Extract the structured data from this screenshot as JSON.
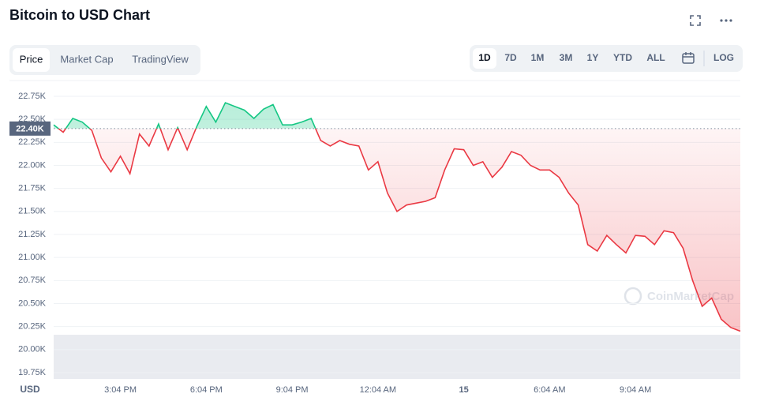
{
  "header": {
    "title": "Bitcoin to USD Chart",
    "tabs": [
      "Price",
      "Market Cap",
      "TradingView"
    ],
    "ranges": [
      "1D",
      "7D",
      "1M",
      "3M",
      "1Y",
      "YTD",
      "ALL"
    ],
    "log": "LOG",
    "watermark": "CoinMarketCap"
  },
  "chart_data": {
    "type": "line",
    "y_unit": "USD",
    "categories": [
      null,
      null,
      null,
      null,
      null,
      null,
      null,
      "3:04 PM",
      null,
      null,
      null,
      null,
      null,
      null,
      null,
      null,
      "6:04 PM",
      null,
      null,
      null,
      null,
      null,
      null,
      null,
      null,
      "9:04 PM",
      null,
      null,
      null,
      null,
      null,
      null,
      null,
      null,
      "12:04 AM",
      null,
      null,
      null,
      null,
      null,
      null,
      null,
      null,
      "15",
      null,
      null,
      null,
      null,
      null,
      null,
      null,
      null,
      "6:04 AM",
      null,
      null,
      null,
      null,
      null,
      null,
      null,
      null,
      "9:04 AM",
      null,
      null,
      null,
      null,
      null,
      null,
      null,
      null,
      null,
      null,
      null
    ],
    "values": [
      22440,
      22360,
      22510,
      22470,
      22380,
      22080,
      21930,
      22100,
      21910,
      22340,
      22210,
      22450,
      22170,
      22410,
      22170,
      22420,
      22640,
      22470,
      22680,
      22640,
      22600,
      22510,
      22610,
      22660,
      22440,
      22440,
      22470,
      22510,
      22270,
      22210,
      22270,
      22230,
      22210,
      21950,
      22040,
      21700,
      21500,
      21570,
      21590,
      21610,
      21650,
      21950,
      22180,
      22170,
      22000,
      22040,
      21870,
      21980,
      22150,
      22110,
      22000,
      21950,
      21950,
      21870,
      21700,
      21570,
      21140,
      21070,
      21240,
      21140,
      21050,
      21240,
      21230,
      21140,
      21290,
      21270,
      21100,
      20750,
      20470,
      20560,
      20330,
      20240,
      20200
    ],
    "reference": {
      "value": 22400,
      "label": "22.40K"
    },
    "up_color": "#16c784",
    "down_color": "#ea3943",
    "ylim": [
      19750,
      22750
    ],
    "yticks": [
      {
        "value": 22750,
        "label": "22.75K"
      },
      {
        "value": 22500,
        "label": "22.50K"
      },
      {
        "value": 22250,
        "label": "22.25K"
      },
      {
        "value": 22000,
        "label": "22.00K"
      },
      {
        "value": 21750,
        "label": "21.75K"
      },
      {
        "value": 21500,
        "label": "21.50K"
      },
      {
        "value": 21250,
        "label": "21.25K"
      },
      {
        "value": 21000,
        "label": "21.00K"
      },
      {
        "value": 20750,
        "label": "20.75K"
      },
      {
        "value": 20500,
        "label": "20.50K"
      },
      {
        "value": 20250,
        "label": "20.25K"
      },
      {
        "value": 20000,
        "label": "20.00K"
      },
      {
        "value": 19750,
        "label": "19.75K"
      }
    ],
    "grid": true
  }
}
